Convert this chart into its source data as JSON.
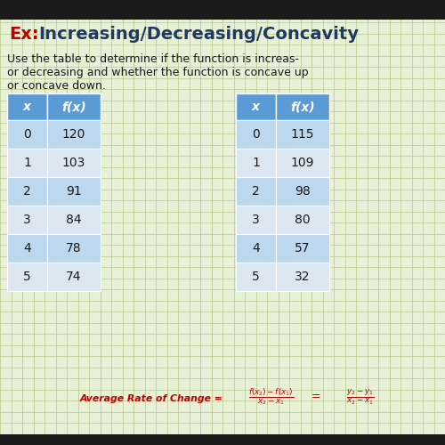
{
  "title_ex": "Ex:",
  "title_main": "Increasing/Decreasing/Concavity",
  "description_line1": "Use the table to determine if the function is increas-",
  "description_line2": "or decreasing and whether the function is concave up",
  "description_line3": "or concave down.",
  "table1": {
    "x": [
      0,
      1,
      2,
      3,
      4,
      5
    ],
    "fx": [
      120,
      103,
      91,
      84,
      78,
      74
    ]
  },
  "table2": {
    "x": [
      0,
      1,
      2,
      3,
      4,
      5
    ],
    "fx": [
      115,
      109,
      98,
      80,
      57,
      32
    ]
  },
  "header_bg": "#5b9bd5",
  "row_bg_light": "#dce6f1",
  "row_bg_dark": "#bdd7ee",
  "bg_color": "#e8f0d8",
  "title_ex_color": "#c00000",
  "title_main_color": "#1f3864",
  "formula_color": "#c00000",
  "text_color": "#1a1a1a",
  "grid_color": "#b5c98a",
  "black_bar_color": "#1a1a1a"
}
